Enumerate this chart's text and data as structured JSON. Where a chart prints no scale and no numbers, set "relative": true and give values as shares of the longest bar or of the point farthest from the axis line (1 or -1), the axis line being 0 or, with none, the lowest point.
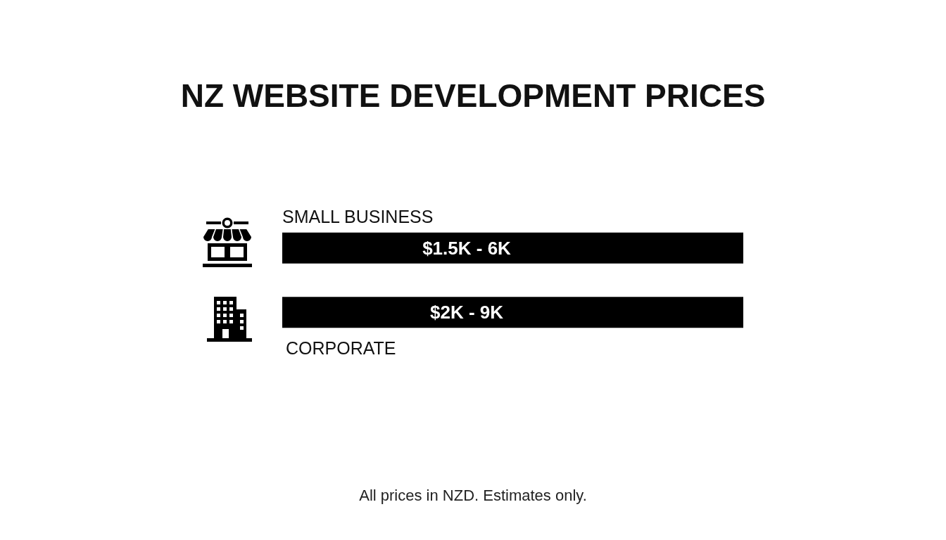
{
  "chart_data": {
    "type": "bar",
    "orientation": "horizontal",
    "relative": true,
    "title": "NZ WEBSITE DEVELOPMENT PRICES",
    "categories": [
      "SMALL BUSINESS",
      "CORPORATE"
    ],
    "values": [
      1,
      1
    ],
    "color": "#000000",
    "annotations": [
      "$1.5K - 6K",
      "$2K - 9K",
      "All prices in NZD. Estimates only."
    ]
  }
}
